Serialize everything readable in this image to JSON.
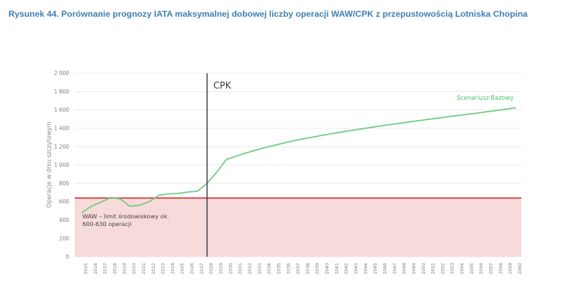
{
  "figure": {
    "caption": "Rysunek 44. Porównanie prognozy IATA maksymalnej dobowej liczby operacji WAW/CPK z przepustowością Lotniska Chopina"
  },
  "colors": {
    "series": "#6dcb82",
    "limit_line": "#e05757",
    "limit_fill": "#f7dada",
    "marker": "#3d4452",
    "grid": "#e4e4e4"
  },
  "chart_data": {
    "type": "line",
    "title": "",
    "xlabel": "",
    "ylabel": "Operacje w dniu szczytowym",
    "ylim": [
      0,
      2000
    ],
    "yticks": [
      0,
      200,
      400,
      600,
      800,
      1000,
      1200,
      1400,
      1600,
      1800,
      2000
    ],
    "ytick_labels": [
      "0",
      "200",
      "400",
      "600",
      "800",
      "1 000",
      "1 200",
      "1 400",
      "1 600",
      "1 800",
      "2 000"
    ],
    "x": [
      2015,
      2016,
      2017,
      2018,
      2019,
      2020,
      2021,
      2022,
      2023,
      2024,
      2025,
      2026,
      2027,
      2028,
      2029,
      2030,
      2031,
      2032,
      2033,
      2034,
      2035,
      2036,
      2037,
      2038,
      2039,
      2040,
      2041,
      2042,
      2043,
      2044,
      2045,
      2046,
      2047,
      2048,
      2049,
      2050,
      2051,
      2052,
      2053,
      2054,
      2055,
      2056,
      2057,
      2058,
      2059,
      2060
    ],
    "series": [
      {
        "name": "Scenariusz Bazowy",
        "values": [
          480,
          550,
          595,
          645,
          630,
          550,
          560,
          600,
          670,
          685,
          690,
          705,
          715,
          800,
          920,
          1060,
          1095,
          1130,
          1160,
          1190,
          1215,
          1240,
          1265,
          1285,
          1305,
          1325,
          1342,
          1360,
          1377,
          1393,
          1410,
          1426,
          1440,
          1455,
          1470,
          1484,
          1498,
          1512,
          1526,
          1540,
          1553,
          1566,
          1580,
          1594,
          1608,
          1625
        ]
      }
    ],
    "threshold": {
      "value": 640,
      "label": "WAW – limit środowiskowy ok. 600-630 operacji"
    },
    "vertical_marker": {
      "x": 2028,
      "label": "CPK"
    },
    "grid": true
  }
}
